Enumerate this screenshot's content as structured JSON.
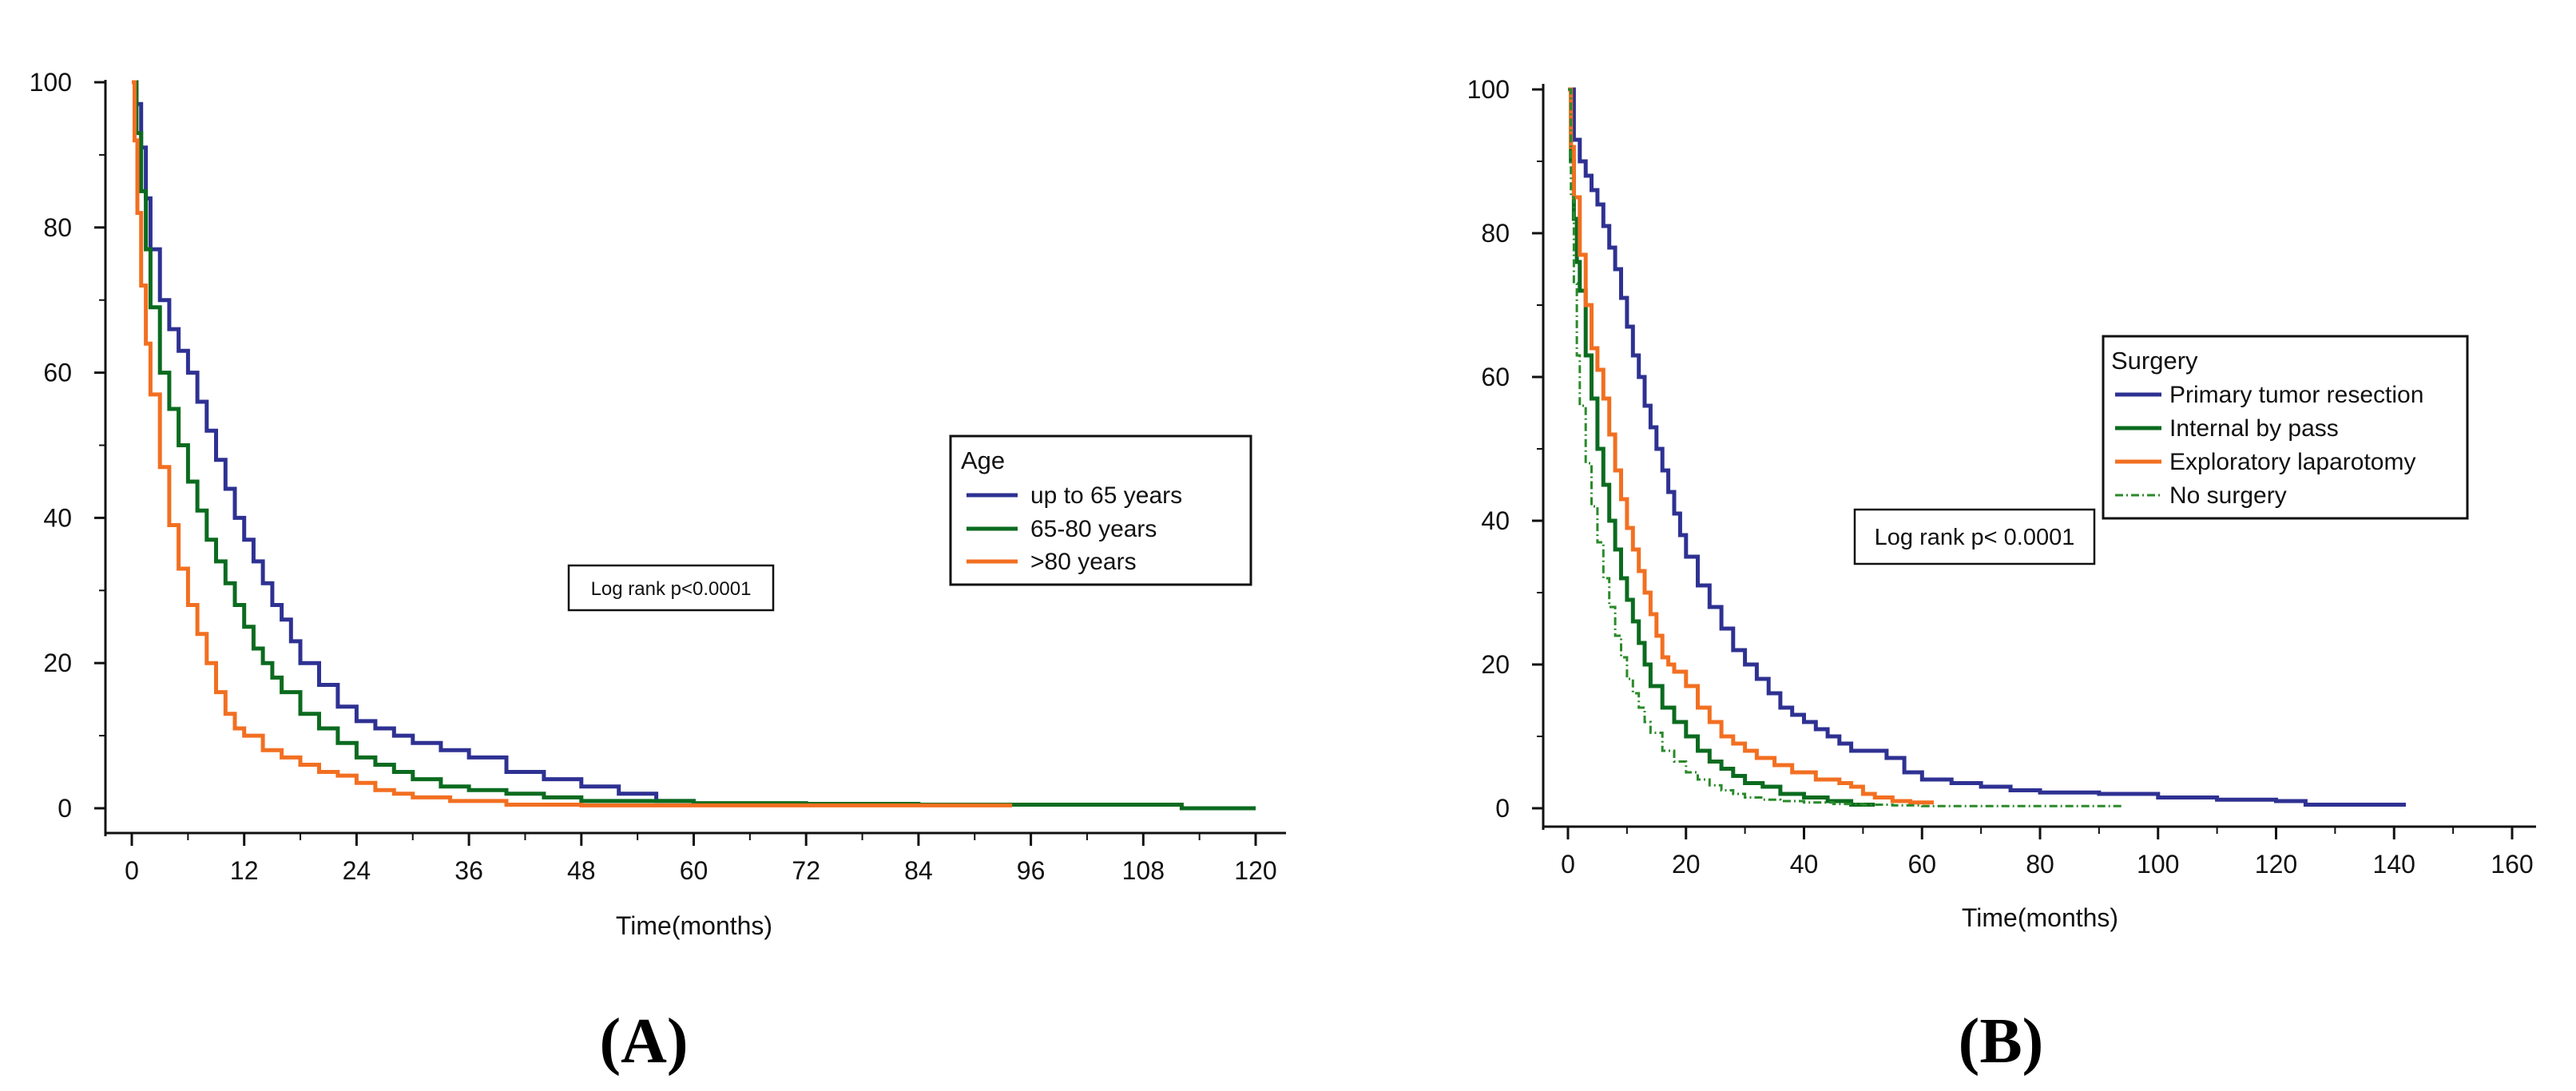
{
  "chart_data": [
    {
      "type": "line",
      "panel_label": "(A)",
      "title": "",
      "xlabel": "Time(months)",
      "ylabel": "",
      "xlim": [
        0,
        120
      ],
      "ylim": [
        0,
        100
      ],
      "x_ticks": [
        0,
        12,
        24,
        36,
        48,
        60,
        72,
        84,
        96,
        108,
        120
      ],
      "x_tick_labels": [
        "0",
        "12",
        "24",
        "36",
        "48",
        "60",
        "72",
        "84",
        "96",
        "108",
        "120"
      ],
      "y_ticks": [
        0,
        20,
        40,
        60,
        80,
        100
      ],
      "y_tick_labels": [
        "0",
        "20",
        "40",
        "60",
        "80",
        "100"
      ],
      "legend": {
        "title": "Age",
        "position": "center-right"
      },
      "annotation": "Log rank p<0.0001",
      "series": [
        {
          "name": "up to 65 years",
          "color": "#2e3192",
          "style": "solid",
          "x": [
            0,
            0.5,
            1,
            1.5,
            2,
            3,
            4,
            5,
            6,
            7,
            8,
            9,
            10,
            11,
            12,
            13,
            14,
            15,
            16,
            17,
            18,
            20,
            22,
            24,
            26,
            28,
            30,
            33,
            36,
            40,
            44,
            48,
            52,
            56,
            60,
            72
          ],
          "y": [
            100,
            97,
            91,
            84,
            77,
            70,
            66,
            63,
            60,
            56,
            52,
            48,
            44,
            40,
            37,
            34,
            31,
            28,
            26,
            23,
            20,
            17,
            14,
            12,
            11,
            10,
            9,
            8,
            7,
            5,
            4,
            3,
            2,
            1,
            0.5,
            0.5
          ]
        },
        {
          "name": "65-80 years",
          "color": "#0b6b1f",
          "style": "solid",
          "x": [
            0,
            0.5,
            1,
            1.5,
            2,
            3,
            4,
            5,
            6,
            7,
            8,
            9,
            10,
            11,
            12,
            13,
            14,
            15,
            16,
            18,
            20,
            22,
            24,
            26,
            28,
            30,
            33,
            36,
            40,
            44,
            48,
            55,
            60,
            72,
            84,
            96,
            112,
            112.1,
            120
          ],
          "y": [
            100,
            93,
            85,
            77,
            69,
            60,
            55,
            50,
            45,
            41,
            37,
            34,
            31,
            28,
            25,
            22,
            20,
            18,
            16,
            13,
            11,
            9,
            7,
            6,
            5,
            4,
            3,
            2.5,
            2,
            1.5,
            1,
            1,
            0.7,
            0.6,
            0.5,
            0.5,
            0.5,
            0,
            0
          ]
        },
        {
          "name": ">80 years",
          "color": "#f26f21",
          "style": "solid",
          "x": [
            0,
            0.3,
            0.6,
            1,
            1.5,
            2,
            3,
            4,
            5,
            6,
            7,
            8,
            9,
            10,
            11,
            12,
            14,
            16,
            18,
            20,
            22,
            24,
            26,
            28,
            30,
            34,
            40,
            48,
            60,
            72,
            84,
            94
          ],
          "y": [
            100,
            92,
            82,
            72,
            64,
            57,
            47,
            39,
            33,
            28,
            24,
            20,
            16,
            13,
            11,
            10,
            8,
            7,
            6,
            5,
            4.5,
            3.5,
            2.5,
            2,
            1.5,
            1,
            0.5,
            0.4,
            0.4,
            0.4,
            0.4,
            0.4
          ]
        }
      ]
    },
    {
      "type": "line",
      "panel_label": "(B)",
      "title": "",
      "xlabel": "Time(months)",
      "ylabel": "",
      "xlim": [
        0,
        160
      ],
      "ylim": [
        0,
        100
      ],
      "x_ticks": [
        0,
        20,
        40,
        60,
        80,
        100,
        120,
        140,
        160
      ],
      "x_tick_labels": [
        "0",
        "20",
        "40",
        "60",
        "80",
        "100",
        "120",
        "140",
        "160"
      ],
      "y_ticks": [
        0,
        20,
        40,
        60,
        80,
        100
      ],
      "y_tick_labels": [
        "0",
        "20",
        "40",
        "60",
        "80",
        "100"
      ],
      "legend": {
        "title": "Surgery",
        "position": "upper-right"
      },
      "annotation": "Log rank p< 0.0001",
      "series": [
        {
          "name": "Primary tumor resection",
          "color": "#2e3192",
          "style": "solid",
          "x": [
            0,
            1,
            2,
            3,
            4,
            5,
            6,
            7,
            8,
            9,
            10,
            11,
            12,
            13,
            14,
            15,
            16,
            17,
            18,
            19,
            20,
            22,
            24,
            26,
            28,
            30,
            32,
            34,
            36,
            38,
            40,
            42,
            44,
            46,
            48,
            50,
            54,
            57,
            60,
            65,
            70,
            75,
            80,
            90,
            100,
            110,
            120,
            125,
            130,
            142
          ],
          "y": [
            100,
            93,
            90,
            88,
            86,
            84,
            81,
            78,
            75,
            71,
            67,
            63,
            60,
            56,
            53,
            50,
            47,
            44,
            41,
            38,
            35,
            31,
            28,
            25,
            22,
            20,
            18,
            16,
            14,
            13,
            12,
            11,
            10,
            9,
            8,
            8,
            7,
            5,
            4,
            3.5,
            3,
            2.5,
            2.2,
            2,
            1.5,
            1.2,
            1,
            0.5,
            0.5,
            0.5
          ]
        },
        {
          "name": "Internal by pass",
          "color": "#0b6b1f",
          "style": "solid",
          "x": [
            0,
            0.5,
            1,
            1.5,
            2,
            3,
            4,
            5,
            6,
            7,
            8,
            9,
            10,
            11,
            12,
            13,
            14,
            16,
            18,
            20,
            22,
            24,
            26,
            28,
            30,
            33,
            36,
            40,
            44,
            48,
            52
          ],
          "y": [
            100,
            90,
            82,
            76,
            72,
            63,
            57,
            50,
            45,
            40,
            36,
            32,
            29,
            26,
            23,
            20,
            17,
            14,
            12,
            10,
            8,
            6.5,
            5.5,
            4.5,
            3.5,
            3,
            2,
            1.5,
            1,
            0.5,
            0.5
          ]
        },
        {
          "name": "Exploratory laparotomy",
          "color": "#f26f21",
          "style": "solid",
          "x": [
            0,
            0.5,
            1,
            2,
            3,
            4,
            5,
            6,
            7,
            8,
            9,
            10,
            11,
            12,
            13,
            14,
            15,
            16,
            17,
            18,
            20,
            22,
            24,
            26,
            28,
            30,
            32,
            35,
            38,
            42,
            46,
            48,
            50,
            52,
            55,
            58,
            62
          ],
          "y": [
            100,
            92,
            85,
            77,
            70,
            64,
            61,
            57,
            52,
            47,
            43,
            39,
            36,
            33,
            30,
            27,
            24,
            21,
            20,
            19,
            17,
            14,
            12,
            10,
            9,
            8,
            7,
            6,
            5,
            4,
            3.5,
            3,
            2,
            1.5,
            1,
            0.8,
            0.8
          ]
        },
        {
          "name": "No surgery",
          "color": "#2a8a2a",
          "style": "dash-dot",
          "x": [
            0,
            0.5,
            1,
            1.5,
            2,
            3,
            4,
            5,
            6,
            7,
            8,
            9,
            10,
            11,
            12,
            13,
            14,
            16,
            18,
            20,
            22,
            24,
            26,
            28,
            30,
            33,
            36,
            40,
            45,
            50,
            55,
            60,
            70,
            80,
            94
          ],
          "y": [
            100,
            85,
            73,
            63,
            56,
            48,
            42,
            37,
            32,
            28,
            24,
            21,
            18,
            16,
            14,
            12,
            10.5,
            8,
            6.5,
            5,
            4,
            3.2,
            2.5,
            2,
            1.5,
            1.2,
            1,
            0.8,
            0.6,
            0.5,
            0.4,
            0.3,
            0.3,
            0.3,
            0.3
          ]
        }
      ]
    }
  ]
}
